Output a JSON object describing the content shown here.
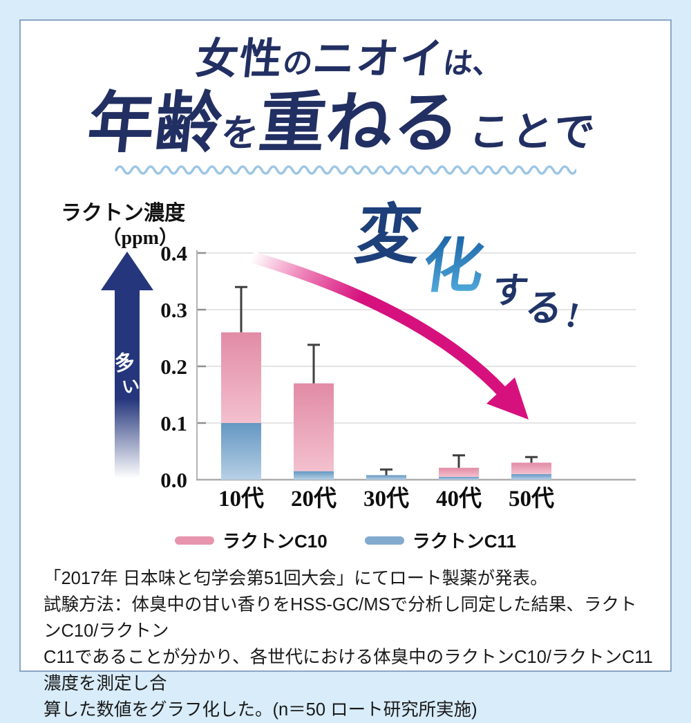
{
  "page": {
    "bg": "#d8ecf9",
    "panel_bg": "#ffffff",
    "panel_border": "#8aa5c6"
  },
  "title": {
    "color": "#222f62",
    "wave_color": "#9ec6e4",
    "line1": {
      "seg1": "女性",
      "seg2": "の",
      "seg3": "ニオイ",
      "seg4": "は、"
    },
    "line2": {
      "seg1": "年齢",
      "seg2": "を",
      "seg3": "重ねる",
      "seg4": "ことで"
    }
  },
  "headline": {
    "char1": "変",
    "char2": "化",
    "char3": "す",
    "char4": "る",
    "char5": "!",
    "navy": "#203468",
    "char1_color": "#1d3f7a",
    "accent_top": "#1d66a8",
    "accent_bottom": "#54aede"
  },
  "axis_label": {
    "line1": "ラクトン濃度",
    "line2": "（ppm）"
  },
  "more_arrow": {
    "label_char1": "多",
    "label_char2": "い",
    "color": "#25367c"
  },
  "trend_arrow": {
    "color": "#d6117d"
  },
  "chart_data": {
    "type": "bar",
    "stacked": true,
    "categories": [
      "10代",
      "20代",
      "30代",
      "40代",
      "50代"
    ],
    "series": [
      {
        "name": "ラクトンC10",
        "role": "top",
        "values": [
          0.16,
          0.155,
          0.0,
          0.016,
          0.02
        ],
        "color_top": "#e28ba6",
        "color_bottom": "#f3c0ce"
      },
      {
        "name": "ラクトンC11",
        "role": "bottom",
        "values": [
          0.1,
          0.015,
          0.008,
          0.005,
          0.01
        ],
        "color_top": "#6497c2",
        "color_bottom": "#b7d0e6"
      }
    ],
    "totals": [
      0.26,
      0.17,
      0.008,
      0.021,
      0.03
    ],
    "error_top": [
      0.34,
      0.238,
      0.018,
      0.043,
      0.04
    ],
    "ylabel": "ラクトン濃度（ppm）",
    "yticks": [
      "0.0",
      "0.1",
      "0.2",
      "0.3",
      "0.4"
    ],
    "ylim": [
      0,
      0.4
    ],
    "grid": true,
    "error_color": "#3f3f3f"
  },
  "legend": {
    "items": [
      {
        "label": "ラクトンC10",
        "color": "#e795ae"
      },
      {
        "label": "ラクトンC11",
        "color": "#82aacf"
      }
    ]
  },
  "footnote": {
    "lines": [
      "「2017年 日本味と匂学会第51回大会」にてロート製薬が発表。",
      "試験方法：体臭中の甘い香りをHSS-GC/MSで分析し同定した結果、ラクトンC10/ラクトン",
      "C11であることが分かり、各世代における体臭中のラクトンC10/ラクトンC11濃度を測定し合",
      "算した数値をグラフ化した。(n＝50 ロート研究所実施)"
    ]
  }
}
